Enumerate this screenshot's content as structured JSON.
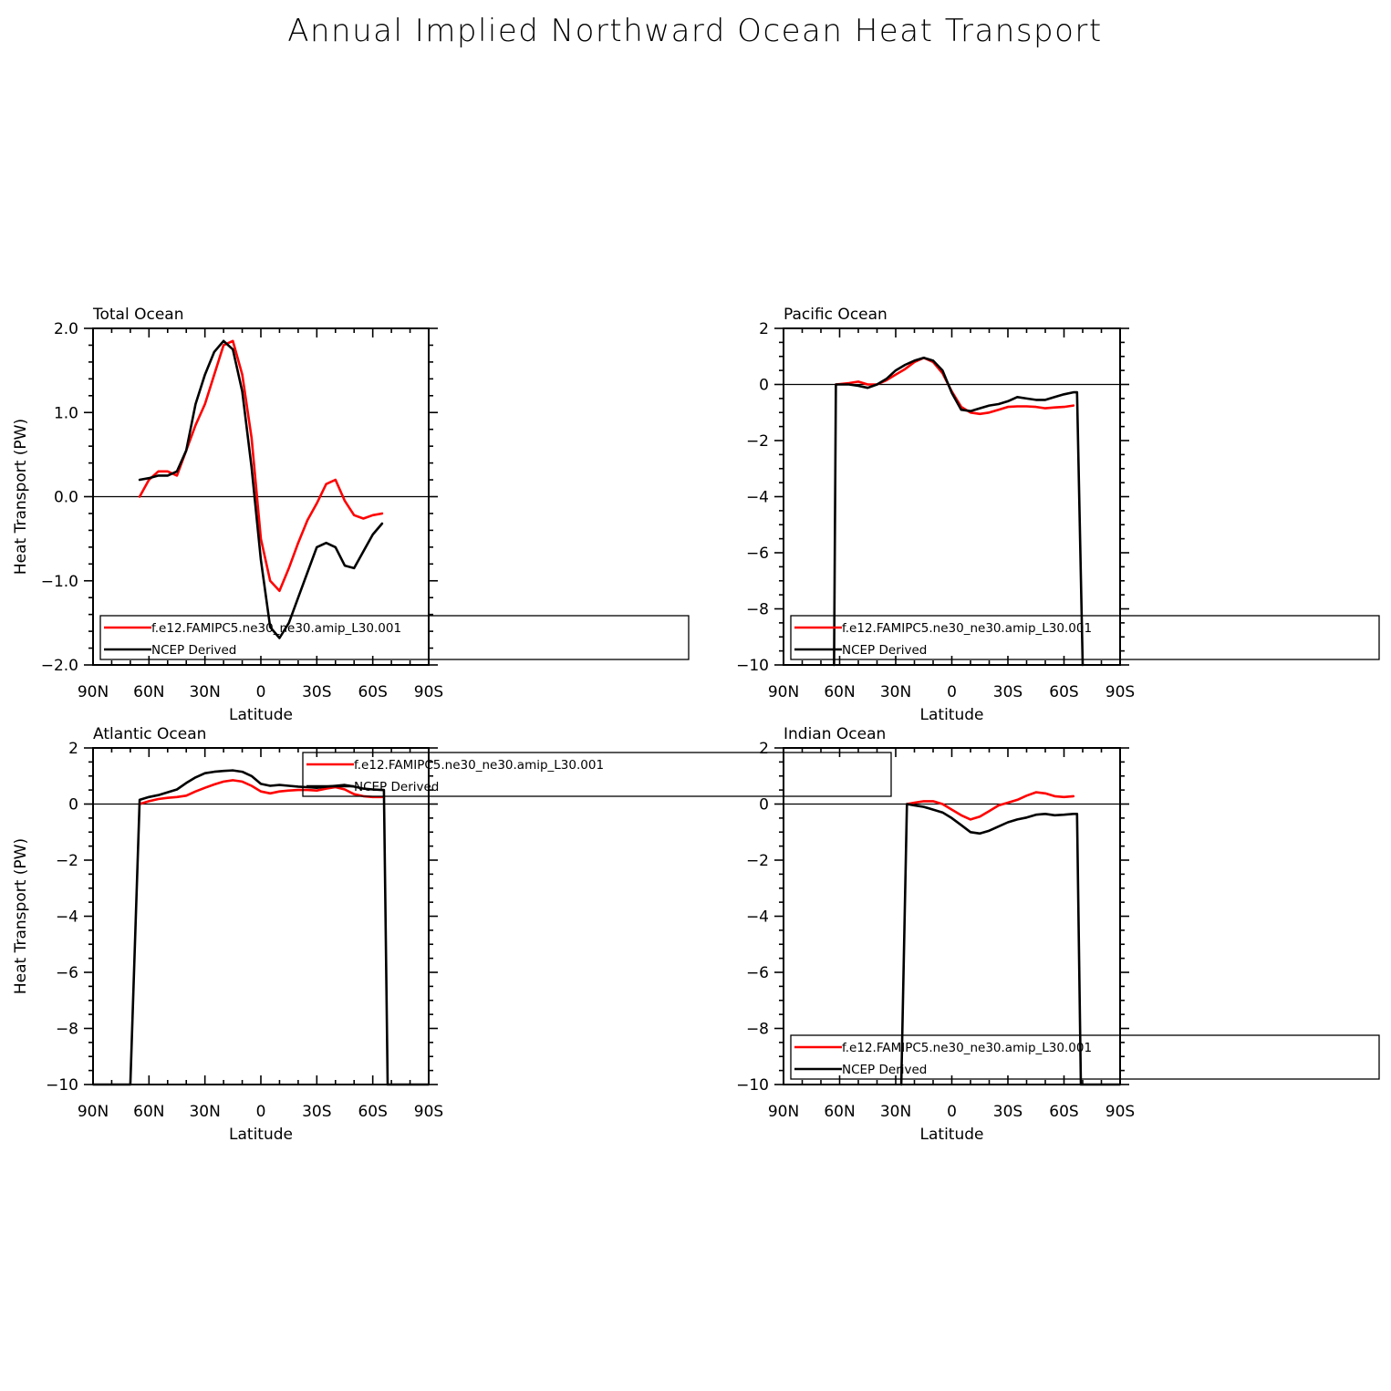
{
  "title": "Annual Implied Northward Ocean Heat Transport",
  "colors": {
    "model": "#ff0000",
    "obs": "#000000",
    "axis": "#000000",
    "background": "#ffffff"
  },
  "chart_data": [
    {
      "type": "line",
      "title": "Total Ocean",
      "xlabel": "Latitude",
      "ylabel": "Heat Transport (PW)",
      "xlim": [
        90,
        -90
      ],
      "ylim": [
        -2,
        2
      ],
      "xticks": [
        90,
        60,
        30,
        0,
        -30,
        -60,
        -90
      ],
      "xtick_labels": [
        "90N",
        "60N",
        "30N",
        "0",
        "30S",
        "60S",
        "90S"
      ],
      "yticks": [
        2,
        1,
        0,
        -1,
        -2
      ],
      "ytick_labels": [
        "2.0",
        "1.0",
        "0.0",
        "−1.0",
        "−2.0"
      ],
      "zero_line": true,
      "legend_placement": "bottom-right",
      "series": [
        {
          "name": "f.e12.FAMIPC5.ne30_ne30.amip_L30.001",
          "color": "#ff0000",
          "x": [
            65,
            60,
            55,
            50,
            45,
            40,
            35,
            30,
            25,
            20,
            15,
            10,
            5,
            0,
            -5,
            -10,
            -15,
            -20,
            -25,
            -30,
            -35,
            -40,
            -45,
            -50,
            -55,
            -60,
            -65
          ],
          "y": [
            0.0,
            0.2,
            0.3,
            0.3,
            0.25,
            0.55,
            0.85,
            1.1,
            1.45,
            1.8,
            1.85,
            1.45,
            0.7,
            -0.5,
            -1.0,
            -1.12,
            -0.85,
            -0.55,
            -0.28,
            -0.08,
            0.15,
            0.2,
            -0.05,
            -0.22,
            -0.26,
            -0.22,
            -0.2
          ]
        },
        {
          "name": "NCEP Derived",
          "color": "#000000",
          "x": [
            65,
            60,
            55,
            50,
            45,
            40,
            35,
            30,
            25,
            20,
            15,
            10,
            5,
            0,
            -5,
            -10,
            -15,
            -20,
            -25,
            -30,
            -35,
            -40,
            -45,
            -50,
            -55,
            -60,
            -65
          ],
          "y": [
            0.2,
            0.22,
            0.25,
            0.25,
            0.3,
            0.55,
            1.1,
            1.45,
            1.72,
            1.85,
            1.75,
            1.25,
            0.35,
            -0.75,
            -1.55,
            -1.68,
            -1.5,
            -1.2,
            -0.9,
            -0.6,
            -0.55,
            -0.6,
            -0.82,
            -0.85,
            -0.65,
            -0.45,
            -0.32
          ]
        }
      ]
    },
    {
      "type": "line",
      "title": "Pacific Ocean",
      "xlabel": "Latitude",
      "ylabel": "",
      "xlim": [
        90,
        -90
      ],
      "ylim": [
        -10,
        2
      ],
      "xticks": [
        90,
        60,
        30,
        0,
        -30,
        -60,
        -90
      ],
      "xtick_labels": [
        "90N",
        "60N",
        "30N",
        "0",
        "30S",
        "60S",
        "90S"
      ],
      "yticks": [
        2,
        0,
        -2,
        -4,
        -6,
        -8,
        -10
      ],
      "ytick_labels": [
        "2",
        "0",
        "−2",
        "−4",
        "−6",
        "−8",
        "−10"
      ],
      "zero_line": true,
      "legend_placement": "bottom-right",
      "series": [
        {
          "name": "f.e12.FAMIPC5.ne30_ne30.amip_L30.001",
          "color": "#ff0000",
          "x": [
            62,
            55,
            50,
            45,
            40,
            35,
            30,
            25,
            20,
            15,
            10,
            5,
            0,
            -5,
            -10,
            -15,
            -20,
            -25,
            -30,
            -35,
            -40,
            -45,
            -50,
            -55,
            -60,
            -65
          ],
          "y": [
            0.0,
            0.05,
            0.1,
            0.0,
            0.0,
            0.15,
            0.35,
            0.55,
            0.8,
            0.95,
            0.8,
            0.4,
            -0.25,
            -0.8,
            -1.0,
            -1.05,
            -1.0,
            -0.9,
            -0.8,
            -0.78,
            -0.78,
            -0.8,
            -0.85,
            -0.82,
            -0.8,
            -0.75
          ]
        },
        {
          "name": "NCEP Derived",
          "color": "#000000",
          "x": [
            63,
            62,
            55,
            50,
            45,
            40,
            35,
            30,
            25,
            20,
            15,
            10,
            5,
            0,
            -5,
            -10,
            -15,
            -20,
            -25,
            -30,
            -35,
            -40,
            -45,
            -50,
            -55,
            -60,
            -65,
            -67,
            -70
          ],
          "y": [
            -10,
            0.0,
            0.0,
            -0.05,
            -0.12,
            0.0,
            0.2,
            0.5,
            0.7,
            0.85,
            0.95,
            0.85,
            0.5,
            -0.3,
            -0.9,
            -0.95,
            -0.85,
            -0.75,
            -0.7,
            -0.6,
            -0.45,
            -0.5,
            -0.55,
            -0.55,
            -0.45,
            -0.35,
            -0.28,
            -0.28,
            -10
          ]
        }
      ]
    },
    {
      "type": "line",
      "title": "Atlantic Ocean",
      "xlabel": "Latitude",
      "ylabel": "Heat Transport (PW)",
      "xlim": [
        90,
        -90
      ],
      "ylim": [
        -10,
        2
      ],
      "xticks": [
        90,
        60,
        30,
        0,
        -30,
        -60,
        -90
      ],
      "xtick_labels": [
        "90N",
        "60N",
        "30N",
        "0",
        "30S",
        "60S",
        "90S"
      ],
      "yticks": [
        2,
        0,
        -2,
        -4,
        -6,
        -8,
        -10
      ],
      "ytick_labels": [
        "2",
        "0",
        "−2",
        "−4",
        "−6",
        "−8",
        "−10"
      ],
      "zero_line": true,
      "legend_placement": "top-right",
      "series": [
        {
          "name": "f.e12.FAMIPC5.ne30_ne30.amip_L30.001",
          "color": "#ff0000",
          "x": [
            65,
            60,
            55,
            50,
            45,
            40,
            35,
            30,
            25,
            20,
            15,
            10,
            5,
            0,
            -5,
            -10,
            -15,
            -20,
            -25,
            -30,
            -35,
            -40,
            -45,
            -50,
            -55,
            -60,
            -65
          ],
          "y": [
            0.0,
            0.1,
            0.18,
            0.22,
            0.25,
            0.3,
            0.45,
            0.58,
            0.7,
            0.8,
            0.85,
            0.8,
            0.65,
            0.45,
            0.38,
            0.45,
            0.48,
            0.5,
            0.5,
            0.48,
            0.55,
            0.6,
            0.52,
            0.35,
            0.28,
            0.25,
            0.25
          ]
        },
        {
          "name": "NCEP Derived",
          "color": "#000000",
          "x": [
            91,
            70,
            65,
            60,
            55,
            50,
            45,
            40,
            35,
            30,
            25,
            20,
            15,
            10,
            5,
            0,
            -5,
            -10,
            -15,
            -20,
            -25,
            -30,
            -35,
            -40,
            -45,
            -50,
            -55,
            -60,
            -65,
            -66,
            -68,
            -90
          ],
          "y": [
            -10,
            -10,
            0.15,
            0.25,
            0.32,
            0.42,
            0.52,
            0.75,
            0.95,
            1.1,
            1.15,
            1.18,
            1.2,
            1.15,
            1.0,
            0.72,
            0.65,
            0.68,
            0.65,
            0.62,
            0.6,
            0.58,
            0.62,
            0.65,
            0.68,
            0.62,
            0.55,
            0.52,
            0.5,
            0.5,
            -10,
            -10
          ]
        }
      ]
    },
    {
      "type": "line",
      "title": "Indian Ocean",
      "xlabel": "Latitude",
      "ylabel": "",
      "xlim": [
        90,
        -90
      ],
      "ylim": [
        -10,
        2
      ],
      "xticks": [
        90,
        60,
        30,
        0,
        -30,
        -60,
        -90
      ],
      "xtick_labels": [
        "90N",
        "60N",
        "30N",
        "0",
        "30S",
        "60S",
        "90S"
      ],
      "yticks": [
        2,
        0,
        -2,
        -4,
        -6,
        -8,
        -10
      ],
      "ytick_labels": [
        "2",
        "0",
        "−2",
        "−4",
        "−6",
        "−8",
        "−10"
      ],
      "zero_line": true,
      "legend_placement": "bottom-right",
      "series": [
        {
          "name": "f.e12.FAMIPC5.ne30_ne30.amip_L30.001",
          "color": "#ff0000",
          "x": [
            24,
            20,
            15,
            10,
            5,
            0,
            -5,
            -10,
            -15,
            -20,
            -25,
            -30,
            -35,
            -40,
            -45,
            -50,
            -55,
            -60,
            -65
          ],
          "y": [
            0.0,
            0.05,
            0.1,
            0.1,
            0.0,
            -0.2,
            -0.4,
            -0.55,
            -0.45,
            -0.25,
            -0.05,
            0.05,
            0.15,
            0.3,
            0.42,
            0.38,
            0.28,
            0.25,
            0.28
          ]
        },
        {
          "name": "NCEP Derived",
          "color": "#000000",
          "x": [
            27,
            24,
            20,
            15,
            10,
            5,
            0,
            -5,
            -10,
            -15,
            -20,
            -25,
            -30,
            -35,
            -40,
            -45,
            -50,
            -55,
            -60,
            -65,
            -67,
            -69,
            -90
          ],
          "y": [
            -10,
            0.0,
            -0.05,
            -0.1,
            -0.2,
            -0.3,
            -0.5,
            -0.75,
            -1.0,
            -1.05,
            -0.95,
            -0.8,
            -0.65,
            -0.55,
            -0.48,
            -0.38,
            -0.35,
            -0.4,
            -0.38,
            -0.35,
            -0.35,
            -10,
            -10
          ]
        }
      ]
    }
  ]
}
